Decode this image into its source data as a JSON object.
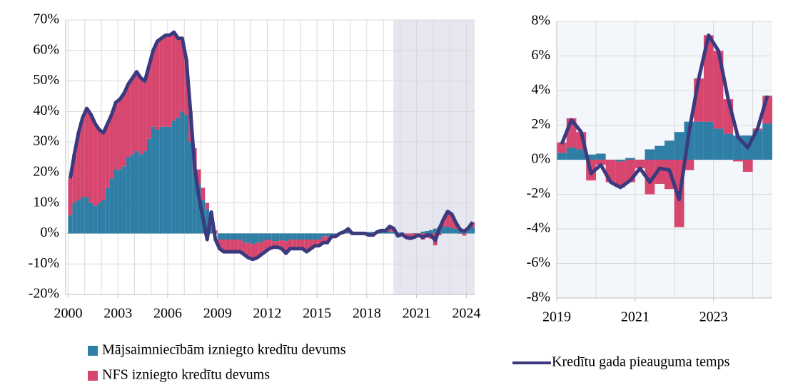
{
  "chart_data": [
    {
      "type": "bar",
      "stacked": true,
      "legend": "bottom",
      "grid": true,
      "shade_from": 2019.6,
      "shade_color": "#e6e6f0",
      "xlim": [
        1999.85,
        2024.5
      ],
      "xticks": [
        2000,
        2003,
        2006,
        2009,
        2012,
        2015,
        2018,
        2021,
        2024
      ],
      "ylim": [
        -20,
        70
      ],
      "yticks": [
        {
          "value": -20,
          "label": "-20%"
        },
        {
          "value": -10,
          "label": "-10%"
        },
        {
          "value": 0,
          "label": "0%"
        },
        {
          "value": 10,
          "label": "10%"
        },
        {
          "value": 20,
          "label": "20%"
        },
        {
          "value": 30,
          "label": "30%"
        },
        {
          "value": 40,
          "label": "40%"
        },
        {
          "value": 50,
          "label": "50%"
        },
        {
          "value": 60,
          "label": "60%"
        },
        {
          "value": 70,
          "label": "70%"
        }
      ],
      "x": [
        2000,
        2000.25,
        2000.5,
        2000.75,
        2001,
        2001.25,
        2001.5,
        2001.75,
        2002,
        2002.25,
        2002.5,
        2002.75,
        2003,
        2003.25,
        2003.5,
        2003.75,
        2004,
        2004.25,
        2004.5,
        2004.75,
        2005,
        2005.25,
        2005.5,
        2005.75,
        2006,
        2006.25,
        2006.5,
        2006.75,
        2007,
        2007.25,
        2007.5,
        2007.75,
        2008,
        2008.25,
        2008.5,
        2008.75,
        2009,
        2009.25,
        2009.5,
        2009.75,
        2010,
        2010.25,
        2010.5,
        2010.75,
        2011,
        2011.25,
        2011.5,
        2011.75,
        2012,
        2012.25,
        2012.5,
        2012.75,
        2013,
        2013.25,
        2013.5,
        2013.75,
        2014,
        2014.25,
        2014.5,
        2014.75,
        2015,
        2015.25,
        2015.5,
        2015.75,
        2016,
        2016.25,
        2016.5,
        2016.75,
        2017,
        2017.25,
        2017.5,
        2017.75,
        2018,
        2018.25,
        2018.5,
        2018.75,
        2019,
        2019.25,
        2019.5,
        2019.75,
        2020,
        2020.25,
        2020.5,
        2020.75,
        2021,
        2021.25,
        2021.5,
        2021.75,
        2022,
        2022.25,
        2022.5,
        2022.75,
        2023,
        2023.25,
        2023.5,
        2023.75,
        2024,
        2024.25
      ],
      "series": [
        {
          "name": "Mājsaimniecībām izniegto kredītu devums",
          "kind": "bar",
          "color": "#2e7ea6",
          "values": [
            6,
            10,
            11,
            12,
            12,
            10,
            9,
            10,
            11,
            15,
            18,
            21,
            21,
            22,
            25,
            26,
            27,
            26,
            27,
            31,
            35,
            34,
            35,
            35,
            35,
            37,
            38,
            40,
            39,
            30,
            20,
            16,
            11,
            8,
            2,
            0,
            -2,
            -2,
            -2,
            -2,
            -2,
            -2,
            -3,
            -3,
            -3.5,
            -3,
            -3,
            -2,
            -2,
            -2.5,
            -2.5,
            -2,
            -2.5,
            -2,
            -2,
            -2,
            -2,
            -2,
            -2,
            -2,
            -2,
            -1,
            -1,
            -0.5,
            -0.5,
            0,
            0,
            0.5,
            0.5,
            0.5,
            0.5,
            0.5,
            0.5,
            0.5,
            0.5,
            0.5,
            0.4,
            0.7,
            0.6,
            0.3,
            0.35,
            0,
            -0.1,
            0.1,
            0,
            0.6,
            0.8,
            1.1,
            1.6,
            2.2,
            2.2,
            2.2,
            1.8,
            1.5,
            1.4,
            1.4,
            1.7,
            2.1
          ]
        },
        {
          "name": "NFS izniegto kredītu devums",
          "kind": "bar",
          "color": "#d6466f",
          "values": [
            12,
            16,
            22,
            26,
            29,
            29,
            27,
            24,
            22,
            21,
            21,
            22,
            23,
            24,
            24,
            25,
            26,
            25,
            23,
            24,
            25,
            29,
            29,
            30,
            30,
            29,
            26,
            24,
            18,
            10,
            8,
            5,
            4,
            2,
            5,
            1,
            -3,
            -4,
            -4,
            -4,
            -4,
            -4,
            -4,
            -5,
            -5,
            -5,
            -4,
            -4,
            -3,
            -2,
            -2,
            -3,
            -4,
            -3,
            -3,
            -3,
            -3,
            -4,
            -3,
            -2,
            -2,
            -2,
            -2,
            -0.5,
            -0.5,
            0,
            0.5,
            1,
            -0.5,
            -0.5,
            -0.5,
            -0.5,
            -1,
            -1,
            0,
            0.5,
            0.6,
            1.7,
            1,
            -1.2,
            -0.3,
            -1.3,
            -1.5,
            -1.3,
            -0.5,
            -2,
            -1.4,
            -1.7,
            -3.9,
            -0.6,
            2.5,
            5,
            4.5,
            2,
            -0.1,
            -0.7,
            0.1,
            1.6
          ]
        },
        {
          "kind": "line",
          "color": "#3b3a7e",
          "values": [
            18,
            26,
            33,
            38,
            41,
            39,
            36,
            34,
            33,
            36,
            39,
            43,
            44,
            46,
            49,
            51,
            53,
            51,
            50,
            55,
            60,
            63,
            64,
            65,
            65,
            66,
            64,
            64,
            57,
            40,
            22,
            12,
            5,
            -2,
            7,
            -2,
            -5,
            -6,
            -6,
            -6,
            -6,
            -6,
            -7,
            -8,
            -8.5,
            -8,
            -7,
            -6,
            -5,
            -4.5,
            -4.5,
            -5,
            -6.5,
            -5,
            -5,
            -5,
            -5,
            -6,
            -5,
            -4,
            -4,
            -3,
            -3,
            -1,
            -1,
            0,
            0.5,
            1.5,
            0,
            0,
            0,
            0,
            -0.5,
            -0.5,
            0.5,
            1,
            0.9,
            2.3,
            1.6,
            -0.8,
            -0.3,
            -1.3,
            -1.6,
            -1.2,
            -0.5,
            -1.3,
            -0.5,
            -0.6,
            -2.3,
            1.6,
            4.7,
            7.2,
            6.3,
            3.5,
            1.3,
            0.7,
            1.8,
            3.7
          ]
        }
      ]
    },
    {
      "type": "bar",
      "stacked": true,
      "legend": "bottom",
      "grid": true,
      "background": "#f3f6fa",
      "xlim": [
        2019,
        2024.5
      ],
      "xticks": [
        2019,
        2021,
        2023
      ],
      "ylim": [
        -8,
        8
      ],
      "yticks": [
        {
          "value": -8,
          "label": "-8%"
        },
        {
          "value": -6,
          "label": "-6%"
        },
        {
          "value": -4,
          "label": "-4%"
        },
        {
          "value": -2,
          "label": "-2%"
        },
        {
          "value": 0,
          "label": "0%"
        },
        {
          "value": 2,
          "label": "2%"
        },
        {
          "value": 4,
          "label": "4%"
        },
        {
          "value": 6,
          "label": "6%"
        },
        {
          "value": 8,
          "label": "8%"
        }
      ],
      "x": [
        2019,
        2019.25,
        2019.5,
        2019.75,
        2020,
        2020.25,
        2020.5,
        2020.75,
        2021,
        2021.25,
        2021.5,
        2021.75,
        2022,
        2022.25,
        2022.5,
        2022.75,
        2023,
        2023.25,
        2023.5,
        2023.75,
        2024,
        2024.25
      ],
      "series": [
        {
          "kind": "bar",
          "color": "#2e7ea6",
          "values": [
            0.4,
            0.7,
            0.6,
            0.3,
            0.35,
            0,
            -0.1,
            0.1,
            0,
            0.6,
            0.8,
            1.1,
            1.6,
            2.2,
            2.2,
            2.2,
            1.8,
            1.5,
            1.4,
            1.4,
            1.7,
            2.1
          ]
        },
        {
          "kind": "bar",
          "color": "#d6466f",
          "values": [
            0.6,
            1.7,
            1,
            -1.2,
            -0.3,
            -1.3,
            -1.5,
            -1.3,
            -0.5,
            -2,
            -1.4,
            -1.7,
            -3.9,
            -0.6,
            2.5,
            5,
            4.5,
            2,
            -0.1,
            -0.7,
            0.1,
            1.6
          ]
        },
        {
          "name": "Kredītu gada pieauguma temps",
          "kind": "line",
          "color": "#3b3a7e",
          "values": [
            0.9,
            2.3,
            1.6,
            -0.8,
            -0.3,
            -1.3,
            -1.6,
            -1.2,
            -0.5,
            -1.3,
            -0.5,
            -0.6,
            -2.3,
            1.6,
            4.7,
            7.2,
            6.3,
            3.5,
            1.3,
            0.7,
            1.8,
            3.7
          ]
        }
      ]
    }
  ]
}
